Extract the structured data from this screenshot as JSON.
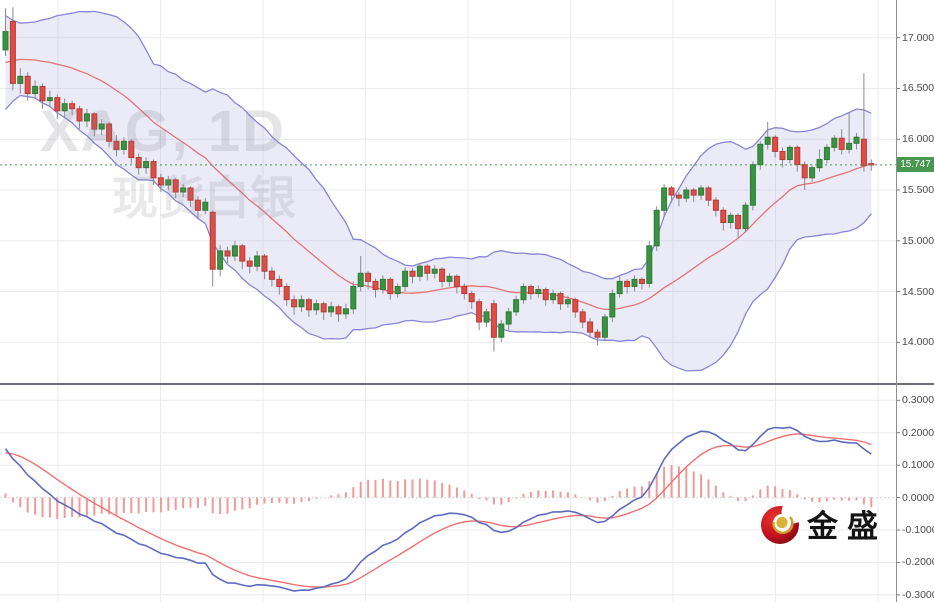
{
  "watermark": {
    "line1": "XAG, 1D",
    "line2": "现货白银"
  },
  "brand": {
    "name": "金盛"
  },
  "price_axis": {
    "labels": [
      "17.000",
      "16.500",
      "16.000",
      "15.500",
      "15.000",
      "14.500",
      "14.000"
    ],
    "values": [
      17.0,
      16.5,
      16.0,
      15.5,
      15.0,
      14.5,
      14.0
    ],
    "last_price_label": "15.747"
  },
  "indicator_axis": {
    "labels": [
      "0.3000",
      "0.2000",
      "0.1000",
      "0.0000",
      "-0.1000",
      "-0.2000",
      "-0.3000"
    ],
    "values": [
      0.3,
      0.2,
      0.1,
      0.0,
      -0.1,
      -0.2,
      -0.3
    ]
  },
  "colors": {
    "up": "#3b9243",
    "up_border": "#2e7d36",
    "down": "#de4e47",
    "down_border": "#b53c36",
    "wick": "#8a8a8a",
    "band_line": "#8884d8",
    "band_fill": "rgba(104,104,204,0.13)",
    "mid_line": "#e57373",
    "macd_line": "#5c6bc0",
    "signal_line": "#ef7070",
    "hist": "#ef9a9a",
    "last_price_bg": "#4a9850",
    "last_price_line": "#4a9850",
    "grid": "#ececef",
    "zero_line": "#d8d8d8",
    "tick": "#777777"
  },
  "chart_data": {
    "type": "candlestick",
    "symbol": "XAG",
    "interval": "1D",
    "description": "现货白银",
    "last_price": 15.747,
    "price_axis_range": [
      13.8,
      17.35
    ],
    "indicator_axis_range": [
      -0.33,
      0.34
    ],
    "grid": "on",
    "indicators": {
      "bollinger": {
        "period": 20,
        "stddev": 2
      },
      "macd": {
        "fast": 12,
        "slow": 26,
        "signal": 9
      }
    },
    "lead_in_closes": [
      16.0,
      16.05,
      16.1,
      16.1,
      16.15,
      16.2,
      16.2,
      16.15,
      16.1,
      16.1,
      16.05,
      16.1,
      16.15,
      16.2,
      16.2,
      16.25,
      16.2,
      16.15,
      16.2,
      16.2,
      16.15,
      16.2,
      16.35,
      16.5,
      16.6,
      16.65,
      16.6,
      16.65,
      16.7,
      16.7,
      16.75,
      16.8,
      16.8,
      16.85,
      16.9,
      16.9,
      16.95,
      17.0,
      17.05,
      17.1
    ],
    "candles": [
      [
        16.88,
        17.29,
        16.82,
        17.06
      ],
      [
        17.16,
        17.3,
        16.48,
        16.55
      ],
      [
        16.55,
        16.7,
        16.45,
        16.62
      ],
      [
        16.62,
        16.66,
        16.38,
        16.45
      ],
      [
        16.45,
        16.58,
        16.4,
        16.52
      ],
      [
        16.52,
        16.55,
        16.3,
        16.38
      ],
      [
        16.38,
        16.48,
        16.32,
        16.41
      ],
      [
        16.41,
        16.44,
        16.2,
        16.28
      ],
      [
        16.28,
        16.4,
        16.22,
        16.35
      ],
      [
        16.35,
        16.38,
        16.24,
        16.3
      ],
      [
        16.3,
        16.33,
        16.1,
        16.18
      ],
      [
        16.18,
        16.3,
        16.12,
        16.25
      ],
      [
        16.25,
        16.27,
        16.03,
        16.1
      ],
      [
        16.1,
        16.2,
        16.04,
        16.15
      ],
      [
        16.15,
        16.17,
        15.92,
        15.98
      ],
      [
        15.98,
        16.04,
        15.83,
        15.9
      ],
      [
        15.9,
        16.02,
        15.85,
        15.98
      ],
      [
        15.98,
        16.0,
        15.76,
        15.82
      ],
      [
        15.82,
        15.86,
        15.65,
        15.72
      ],
      [
        15.72,
        15.82,
        15.66,
        15.78
      ],
      [
        15.78,
        15.8,
        15.55,
        15.62
      ],
      [
        15.62,
        15.66,
        15.48,
        15.55
      ],
      [
        15.55,
        15.64,
        15.5,
        15.6
      ],
      [
        15.6,
        15.62,
        15.42,
        15.48
      ],
      [
        15.48,
        15.56,
        15.43,
        15.52
      ],
      [
        15.52,
        15.54,
        15.33,
        15.4
      ],
      [
        15.4,
        15.44,
        15.22,
        15.3
      ],
      [
        15.3,
        15.42,
        15.26,
        15.38
      ],
      [
        15.28,
        15.3,
        14.55,
        14.72
      ],
      [
        14.72,
        14.96,
        14.65,
        14.9
      ],
      [
        14.9,
        14.94,
        14.78,
        14.85
      ],
      [
        14.85,
        15.0,
        14.8,
        14.95
      ],
      [
        14.95,
        14.97,
        14.72,
        14.8
      ],
      [
        14.8,
        14.84,
        14.68,
        14.75
      ],
      [
        14.75,
        14.9,
        14.7,
        14.85
      ],
      [
        14.85,
        14.87,
        14.62,
        14.7
      ],
      [
        14.7,
        14.74,
        14.55,
        14.62
      ],
      [
        14.62,
        14.66,
        14.47,
        14.55
      ],
      [
        14.55,
        14.58,
        14.36,
        14.42
      ],
      [
        14.42,
        14.46,
        14.27,
        14.35
      ],
      [
        14.35,
        14.46,
        14.3,
        14.42
      ],
      [
        14.42,
        14.44,
        14.25,
        14.32
      ],
      [
        14.32,
        14.42,
        14.27,
        14.38
      ],
      [
        14.38,
        14.4,
        14.22,
        14.3
      ],
      [
        14.3,
        14.4,
        14.25,
        14.35
      ],
      [
        14.35,
        14.37,
        14.2,
        14.28
      ],
      [
        14.28,
        14.38,
        14.23,
        14.33
      ],
      [
        14.33,
        14.6,
        14.28,
        14.55
      ],
      [
        14.55,
        14.85,
        14.5,
        14.68
      ],
      [
        14.68,
        14.7,
        14.52,
        14.6
      ],
      [
        14.6,
        14.63,
        14.44,
        14.52
      ],
      [
        14.52,
        14.66,
        14.48,
        14.62
      ],
      [
        14.62,
        14.64,
        14.42,
        14.48
      ],
      [
        14.48,
        14.58,
        14.44,
        14.55
      ],
      [
        14.55,
        14.74,
        14.5,
        14.7
      ],
      [
        14.7,
        14.73,
        14.58,
        14.65
      ],
      [
        14.65,
        14.78,
        14.6,
        14.75
      ],
      [
        14.75,
        14.77,
        14.61,
        14.68
      ],
      [
        14.68,
        14.76,
        14.63,
        14.72
      ],
      [
        14.72,
        14.74,
        14.54,
        14.6
      ],
      [
        14.6,
        14.68,
        14.55,
        14.65
      ],
      [
        14.65,
        14.67,
        14.48,
        14.55
      ],
      [
        14.55,
        14.58,
        14.42,
        14.48
      ],
      [
        14.48,
        14.51,
        14.33,
        14.4
      ],
      [
        14.4,
        14.43,
        14.12,
        14.2
      ],
      [
        14.2,
        14.33,
        14.15,
        14.3
      ],
      [
        14.38,
        14.42,
        13.91,
        14.05
      ],
      [
        14.05,
        14.22,
        14.0,
        14.18
      ],
      [
        14.18,
        14.34,
        14.12,
        14.3
      ],
      [
        14.3,
        14.46,
        14.26,
        14.42
      ],
      [
        14.42,
        14.58,
        14.38,
        14.55
      ],
      [
        14.55,
        14.57,
        14.42,
        14.48
      ],
      [
        14.48,
        14.56,
        14.44,
        14.52
      ],
      [
        14.52,
        14.54,
        14.36,
        14.42
      ],
      [
        14.42,
        14.52,
        14.38,
        14.48
      ],
      [
        14.48,
        14.5,
        14.32,
        14.38
      ],
      [
        14.38,
        14.46,
        14.34,
        14.42
      ],
      [
        14.42,
        14.44,
        14.24,
        14.3
      ],
      [
        14.3,
        14.33,
        14.14,
        14.2
      ],
      [
        14.2,
        14.24,
        14.04,
        14.1
      ],
      [
        14.1,
        14.13,
        13.97,
        14.05
      ],
      [
        14.05,
        14.28,
        14.01,
        14.25
      ],
      [
        14.25,
        14.52,
        14.2,
        14.48
      ],
      [
        14.48,
        14.65,
        14.44,
        14.6
      ],
      [
        14.6,
        14.62,
        14.48,
        14.55
      ],
      [
        14.55,
        14.66,
        14.5,
        14.62
      ],
      [
        14.62,
        14.64,
        14.52,
        14.58
      ],
      [
        14.58,
        15.0,
        14.54,
        14.95
      ],
      [
        14.95,
        15.34,
        14.9,
        15.3
      ],
      [
        15.3,
        15.56,
        15.25,
        15.52
      ],
      [
        15.52,
        15.54,
        15.38,
        15.45
      ],
      [
        15.45,
        15.48,
        15.34,
        15.42
      ],
      [
        15.42,
        15.53,
        15.38,
        15.5
      ],
      [
        15.5,
        15.52,
        15.38,
        15.45
      ],
      [
        15.45,
        15.55,
        15.4,
        15.52
      ],
      [
        15.52,
        15.54,
        15.34,
        15.4
      ],
      [
        15.4,
        15.43,
        15.24,
        15.3
      ],
      [
        15.3,
        15.33,
        15.1,
        15.18
      ],
      [
        15.18,
        15.28,
        15.12,
        15.25
      ],
      [
        15.25,
        15.27,
        15.02,
        15.12
      ],
      [
        15.12,
        15.38,
        15.08,
        15.35
      ],
      [
        15.35,
        15.78,
        15.3,
        15.75
      ],
      [
        15.75,
        15.98,
        15.7,
        15.95
      ],
      [
        15.95,
        16.17,
        15.9,
        16.02
      ],
      [
        16.02,
        16.04,
        15.82,
        15.88
      ],
      [
        15.88,
        15.92,
        15.72,
        15.8
      ],
      [
        15.8,
        15.94,
        15.76,
        15.92
      ],
      [
        15.92,
        15.94,
        15.68,
        15.75
      ],
      [
        15.75,
        15.78,
        15.5,
        15.62
      ],
      [
        15.62,
        15.74,
        15.58,
        15.72
      ],
      [
        15.72,
        15.9,
        15.68,
        15.8
      ],
      [
        15.8,
        15.95,
        15.76,
        15.92
      ],
      [
        15.92,
        16.04,
        15.88,
        16.01
      ],
      [
        16.01,
        16.1,
        15.85,
        15.9
      ],
      [
        15.9,
        16.26,
        15.86,
        15.96
      ],
      [
        15.96,
        16.06,
        15.9,
        16.02
      ],
      [
        16.0,
        16.65,
        15.68,
        15.74
      ],
      [
        15.76,
        15.8,
        15.69,
        15.747
      ]
    ]
  }
}
